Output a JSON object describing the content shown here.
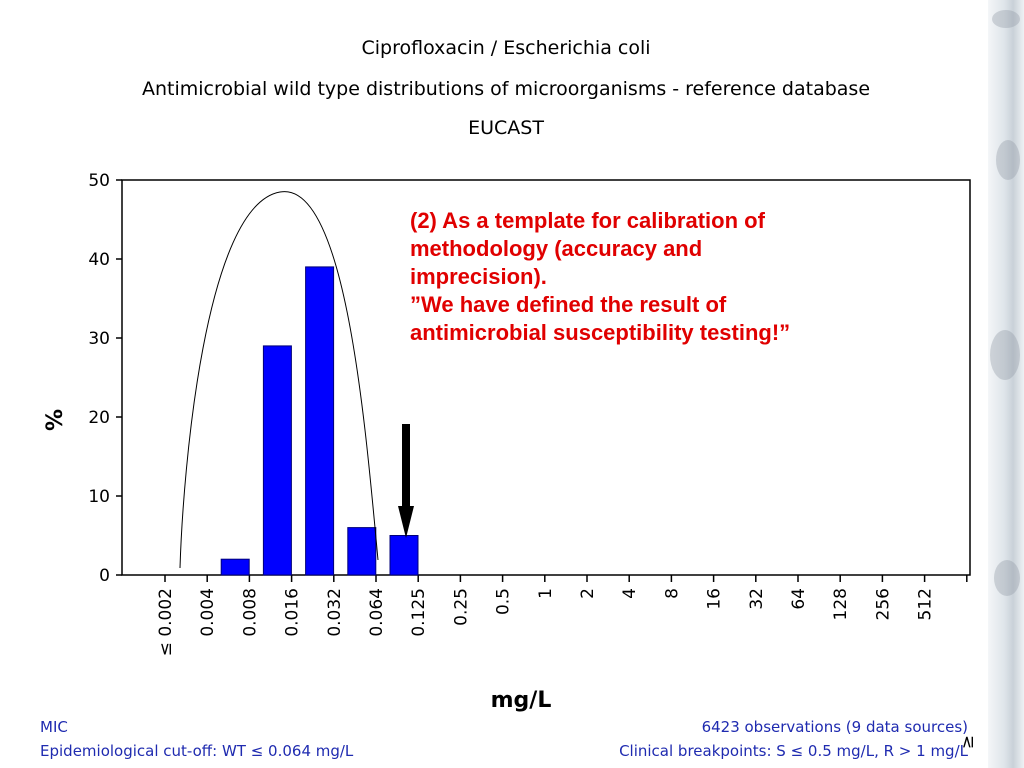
{
  "chart_data": {
    "type": "bar",
    "title": "Ciprofloxacin / Escherichia coli",
    "subtitle": "Antimicrobial wild type distributions of microorganisms - reference database",
    "source": "EUCAST",
    "xlabel": "mg/L",
    "ylabel": "%",
    "ylim": [
      0,
      50
    ],
    "yticks": [
      "0",
      "10",
      "20",
      "30",
      "40",
      "50"
    ],
    "categories": [
      "≤ 0.002",
      "0.004",
      "0.008",
      "0.016",
      "0.032",
      "0.064",
      "0.125",
      "0.25",
      "0.5",
      "1",
      "2",
      "4",
      "8",
      "16",
      "32",
      "64",
      "128",
      "256",
      "512",
      "≥"
    ],
    "values": [
      0,
      2,
      29,
      39,
      6,
      5,
      0,
      0,
      0,
      0,
      0,
      0,
      0,
      0,
      0,
      0,
      0,
      0,
      0,
      null
    ],
    "bar_color": "#0000ff",
    "grid": false,
    "annotation": {
      "lines": [
        "(2) As a template for calibration of",
        "methodology (accuracy and",
        "imprecision).",
        "”We have defined the result of",
        "antimicrobial susceptibility testing!”"
      ],
      "color": "#e00000"
    }
  },
  "footer": {
    "left_1": "MIC",
    "left_2": "Epidemiological cut-off: WT ≤ 0.064 mg/L",
    "right_1": "6423 observations (9 data sources)",
    "right_2": "Clinical breakpoints: S ≤ 0.5 mg/L,  R > 1 mg/L"
  },
  "colors": {
    "footer_text": "#1f2bb0",
    "arrow": "#000000"
  },
  "icons": {
    "breakpoint-marker": "down-arrow-icon"
  }
}
